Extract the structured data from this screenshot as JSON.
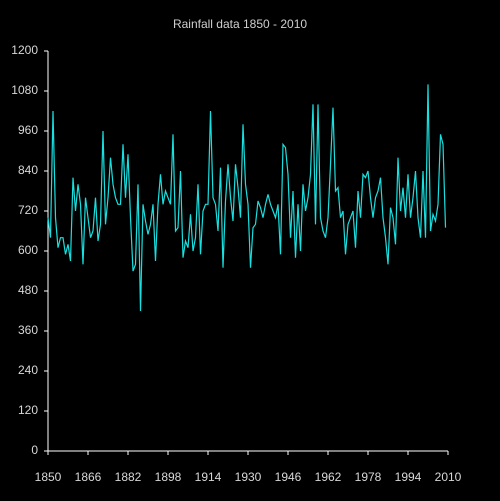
{
  "chart_data": {
    "type": "line",
    "title": "Rainfall data 1850 - 2010",
    "x": [
      1850,
      1851,
      1852,
      1853,
      1854,
      1855,
      1856,
      1857,
      1858,
      1859,
      1860,
      1861,
      1862,
      1863,
      1864,
      1865,
      1866,
      1867,
      1868,
      1869,
      1870,
      1871,
      1872,
      1873,
      1874,
      1875,
      1876,
      1877,
      1878,
      1879,
      1880,
      1881,
      1882,
      1883,
      1884,
      1885,
      1886,
      1887,
      1888,
      1889,
      1890,
      1891,
      1892,
      1893,
      1894,
      1895,
      1896,
      1897,
      1898,
      1899,
      1900,
      1901,
      1902,
      1903,
      1904,
      1905,
      1906,
      1907,
      1908,
      1909,
      1910,
      1911,
      1912,
      1913,
      1914,
      1915,
      1916,
      1917,
      1918,
      1919,
      1920,
      1921,
      1922,
      1923,
      1924,
      1925,
      1926,
      1927,
      1928,
      1929,
      1930,
      1931,
      1932,
      1933,
      1934,
      1935,
      1936,
      1937,
      1938,
      1939,
      1940,
      1941,
      1942,
      1943,
      1944,
      1945,
      1946,
      1947,
      1948,
      1949,
      1950,
      1951,
      1952,
      1953,
      1954,
      1955,
      1956,
      1957,
      1958,
      1959,
      1960,
      1961,
      1962,
      1963,
      1964,
      1965,
      1966,
      1967,
      1968,
      1969,
      1970,
      1971,
      1972,
      1973,
      1974,
      1975,
      1976,
      1977,
      1978,
      1979,
      1980,
      1981,
      1982,
      1983,
      1984,
      1985,
      1986,
      1987,
      1988,
      1989,
      1990,
      1991,
      1992,
      1993,
      1994,
      1995,
      1996,
      1997,
      1998,
      1999,
      2000,
      2001,
      2002,
      2003,
      2004,
      2005,
      2006,
      2007,
      2008,
      2009
    ],
    "series": [
      {
        "name": "Rainfall",
        "color": "#19e0e0",
        "values": [
          700,
          640,
          1020,
          700,
          610,
          640,
          640,
          590,
          620,
          570,
          820,
          720,
          800,
          740,
          560,
          760,
          700,
          640,
          660,
          760,
          630,
          680,
          960,
          680,
          760,
          880,
          800,
          760,
          740,
          740,
          920,
          760,
          890,
          700,
          540,
          560,
          800,
          420,
          740,
          690,
          650,
          680,
          740,
          570,
          740,
          830,
          740,
          780,
          760,
          740,
          950,
          660,
          670,
          840,
          580,
          630,
          610,
          710,
          600,
          640,
          800,
          590,
          720,
          740,
          740,
          1020,
          760,
          740,
          660,
          850,
          550,
          750,
          860,
          760,
          690,
          860,
          790,
          700,
          980,
          800,
          740,
          550,
          670,
          680,
          750,
          730,
          700,
          740,
          770,
          740,
          720,
          700,
          740,
          590,
          920,
          910,
          830,
          640,
          780,
          580,
          740,
          600,
          800,
          720,
          760,
          830,
          1040,
          680,
          1040,
          700,
          660,
          640,
          700,
          860,
          1030,
          780,
          790,
          700,
          720,
          590,
          680,
          700,
          720,
          610,
          780,
          700,
          830,
          820,
          840,
          760,
          700,
          760,
          780,
          820,
          700,
          640,
          560,
          730,
          700,
          620,
          880,
          720,
          790,
          700,
          830,
          700,
          760,
          840,
          700,
          640,
          840,
          640,
          1100,
          660,
          710,
          690,
          740,
          950,
          920,
          670
        ]
      }
    ],
    "xlim": [
      1850,
      2010
    ],
    "xticks": [
      1850,
      1866,
      1882,
      1898,
      1914,
      1930,
      1946,
      1962,
      1978,
      1994,
      2010
    ],
    "ylim": [
      0,
      1200
    ],
    "yticks": [
      0,
      120,
      240,
      360,
      480,
      600,
      720,
      840,
      960,
      1080,
      1200
    ]
  }
}
